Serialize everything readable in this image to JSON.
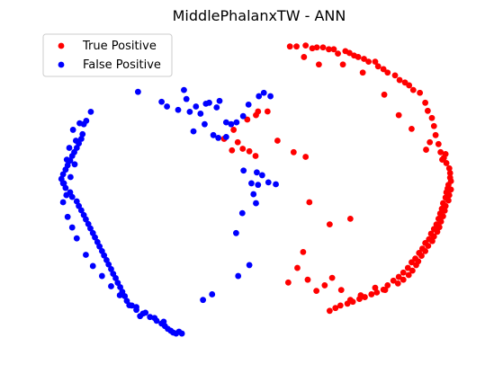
{
  "chart_data": {
    "type": "scatter",
    "title": "MiddlePhalanxTW - ANN",
    "xlabel": "",
    "ylabel": "",
    "axes_visible": false,
    "grid": false,
    "legend_position": "top-left",
    "xlim": [
      0,
      100
    ],
    "ylim": [
      0,
      100
    ],
    "series": [
      {
        "name": "True Positive",
        "color": "#ff0000",
        "points": [
          [
            57.0,
            97.2
          ],
          [
            58.6,
            97.2
          ],
          [
            60.8,
            97.5
          ],
          [
            62.4,
            96.6
          ],
          [
            63.5,
            96.9
          ],
          [
            65.0,
            96.9
          ],
          [
            66.4,
            96.3
          ],
          [
            67.6,
            96.3
          ],
          [
            68.6,
            94.9
          ],
          [
            70.4,
            95.7
          ],
          [
            71.4,
            95.1
          ],
          [
            72.5,
            94.3
          ],
          [
            73.5,
            93.8
          ],
          [
            74.9,
            93.2
          ],
          [
            76.0,
            92.3
          ],
          [
            77.6,
            92.3
          ],
          [
            78.3,
            90.8
          ],
          [
            79.6,
            89.9
          ],
          [
            80.6,
            88.8
          ],
          [
            82.4,
            87.9
          ],
          [
            83.5,
            86.4
          ],
          [
            84.8,
            85.6
          ],
          [
            85.8,
            84.7
          ],
          [
            86.8,
            83.2
          ],
          [
            88.4,
            82.3
          ],
          [
            89.7,
            79.1
          ],
          [
            90.3,
            76.5
          ],
          [
            91.3,
            74.2
          ],
          [
            91.8,
            71.6
          ],
          [
            92.2,
            68.7
          ],
          [
            92.9,
            65.8
          ],
          [
            93.4,
            63.2
          ],
          [
            94.2,
            61.4
          ],
          [
            94.8,
            59.7
          ],
          [
            95.5,
            58.0
          ],
          [
            95.7,
            56.5
          ],
          [
            95.7,
            55.0
          ],
          [
            95.9,
            53.9
          ],
          [
            95.3,
            52.7
          ],
          [
            95.1,
            51.5
          ],
          [
            95.9,
            51.2
          ],
          [
            94.8,
            50.3
          ],
          [
            95.5,
            49.4
          ],
          [
            94.6,
            48.6
          ],
          [
            95.3,
            47.7
          ],
          [
            94.0,
            46.8
          ],
          [
            94.6,
            45.9
          ],
          [
            93.7,
            45.0
          ],
          [
            94.4,
            44.4
          ],
          [
            93.3,
            43.5
          ],
          [
            94.0,
            42.6
          ],
          [
            92.9,
            41.8
          ],
          [
            93.5,
            40.9
          ],
          [
            92.4,
            40.0
          ],
          [
            93.1,
            39.1
          ],
          [
            91.8,
            38.5
          ],
          [
            92.6,
            37.6
          ],
          [
            91.1,
            37.0
          ],
          [
            91.8,
            36.1
          ],
          [
            90.6,
            35.2
          ],
          [
            91.4,
            34.6
          ],
          [
            89.7,
            34.0
          ],
          [
            90.4,
            33.1
          ],
          [
            89.0,
            32.2
          ],
          [
            89.7,
            31.4
          ],
          [
            88.2,
            30.8
          ],
          [
            88.8,
            29.9
          ],
          [
            87.3,
            29.0
          ],
          [
            88.0,
            28.1
          ],
          [
            86.4,
            27.8
          ],
          [
            87.5,
            26.9
          ],
          [
            85.5,
            26.0
          ],
          [
            86.6,
            25.1
          ],
          [
            84.4,
            24.5
          ],
          [
            85.7,
            23.7
          ],
          [
            83.3,
            23.1
          ],
          [
            84.4,
            22.2
          ],
          [
            82.0,
            21.9
          ],
          [
            83.1,
            21.0
          ],
          [
            80.6,
            20.4
          ],
          [
            79.6,
            19.0
          ],
          [
            78.0,
            18.1
          ],
          [
            76.7,
            17.5
          ],
          [
            75.1,
            16.6
          ],
          [
            73.8,
            16.0
          ],
          [
            72.2,
            15.1
          ],
          [
            70.9,
            14.5
          ],
          [
            69.2,
            13.9
          ],
          [
            68.0,
            13.1
          ],
          [
            66.6,
            12.2
          ],
          [
            56.6,
            21.3
          ],
          [
            58.8,
            26.0
          ],
          [
            61.3,
            22.2
          ],
          [
            63.4,
            18.6
          ],
          [
            65.4,
            20.4
          ],
          [
            67.2,
            22.8
          ],
          [
            69.4,
            18.9
          ],
          [
            71.6,
            15.7
          ],
          [
            74.1,
            17.2
          ],
          [
            77.6,
            19.6
          ],
          [
            80.0,
            18.9
          ],
          [
            60.2,
            31.1
          ],
          [
            61.7,
            47.1
          ],
          [
            66.6,
            40.0
          ],
          [
            71.6,
            41.8
          ],
          [
            41.1,
            67.5
          ],
          [
            43.0,
            63.8
          ],
          [
            46.7,
            73.7
          ],
          [
            48.8,
            75.1
          ],
          [
            49.3,
            76.3
          ],
          [
            51.6,
            76.3
          ],
          [
            43.4,
            70.4
          ],
          [
            44.4,
            66.4
          ],
          [
            45.6,
            64.3
          ],
          [
            47.2,
            63.5
          ],
          [
            48.7,
            62.0
          ],
          [
            54.0,
            66.9
          ],
          [
            57.9,
            63.2
          ],
          [
            60.8,
            61.7
          ],
          [
            89.9,
            64.0
          ],
          [
            90.8,
            66.4
          ],
          [
            86.4,
            70.7
          ],
          [
            83.3,
            75.1
          ],
          [
            79.8,
            81.7
          ],
          [
            74.6,
            88.8
          ],
          [
            69.8,
            91.4
          ],
          [
            64.0,
            91.4
          ],
          [
            60.4,
            93.8
          ],
          [
            94.6,
            62.6
          ],
          [
            93.8,
            60.8
          ]
        ]
      },
      {
        "name": "False Positive",
        "color": "#0000ff",
        "points": [
          [
            20.3,
            82.6
          ],
          [
            26.0,
            79.4
          ],
          [
            27.3,
            77.9
          ],
          [
            30.0,
            76.8
          ],
          [
            31.4,
            83.2
          ],
          [
            32.0,
            80.3
          ],
          [
            32.8,
            76.2
          ],
          [
            34.3,
            77.9
          ],
          [
            35.4,
            75.6
          ],
          [
            36.7,
            78.8
          ],
          [
            37.5,
            79.1
          ],
          [
            39.3,
            77.6
          ],
          [
            40.0,
            79.7
          ],
          [
            41.6,
            72.8
          ],
          [
            42.8,
            72.2
          ],
          [
            44.1,
            72.8
          ],
          [
            45.7,
            74.8
          ],
          [
            47.0,
            78.5
          ],
          [
            49.5,
            81.2
          ],
          [
            50.7,
            82.3
          ],
          [
            52.3,
            81.2
          ],
          [
            19.9,
            95.1
          ],
          [
            8.9,
            76.2
          ],
          [
            7.8,
            73.3
          ],
          [
            7.2,
            72.2
          ],
          [
            6.9,
            69.0
          ],
          [
            6.6,
            67.5
          ],
          [
            6.0,
            66.0
          ],
          [
            5.5,
            64.6
          ],
          [
            4.9,
            63.2
          ],
          [
            4.4,
            62.0
          ],
          [
            3.9,
            60.5
          ],
          [
            3.3,
            59.0
          ],
          [
            2.8,
            57.6
          ],
          [
            2.2,
            56.1
          ],
          [
            1.8,
            54.6
          ],
          [
            2.2,
            53.2
          ],
          [
            2.8,
            51.7
          ],
          [
            3.9,
            50.3
          ],
          [
            4.4,
            48.8
          ],
          [
            5.5,
            47.4
          ],
          [
            6.0,
            45.9
          ],
          [
            6.6,
            44.5
          ],
          [
            7.2,
            43.0
          ],
          [
            7.7,
            41.6
          ],
          [
            8.3,
            40.1
          ],
          [
            8.8,
            38.7
          ],
          [
            9.4,
            37.2
          ],
          [
            9.9,
            35.8
          ],
          [
            10.5,
            34.3
          ],
          [
            11.0,
            32.9
          ],
          [
            11.6,
            31.4
          ],
          [
            12.1,
            30.0
          ],
          [
            12.7,
            28.5
          ],
          [
            13.2,
            27.1
          ],
          [
            13.8,
            25.6
          ],
          [
            14.3,
            24.1
          ],
          [
            14.9,
            22.7
          ],
          [
            15.4,
            21.2
          ],
          [
            16.0,
            19.8
          ],
          [
            16.5,
            18.3
          ],
          [
            17.1,
            16.9
          ],
          [
            17.6,
            15.4
          ],
          [
            18.2,
            14.0
          ],
          [
            19.9,
            12.5
          ],
          [
            21.5,
            11.3
          ],
          [
            23.2,
            10.2
          ],
          [
            24.8,
            9.0
          ],
          [
            26.0,
            8.1
          ],
          [
            26.8,
            7.3
          ],
          [
            27.5,
            6.4
          ],
          [
            28.2,
            5.8
          ],
          [
            28.8,
            5.2
          ],
          [
            29.5,
            4.9
          ],
          [
            30.2,
            5.5
          ],
          [
            30.9,
            4.9
          ],
          [
            26.5,
            8.7
          ],
          [
            24.3,
            9.9
          ],
          [
            22.1,
            11.6
          ],
          [
            19.9,
            13.4
          ],
          [
            5.0,
            59.3
          ],
          [
            4.0,
            55.2
          ],
          [
            3.1,
            60.8
          ],
          [
            2.4,
            53.2
          ],
          [
            3.7,
            64.6
          ],
          [
            5.3,
            66.9
          ],
          [
            4.6,
            70.4
          ],
          [
            6.2,
            72.5
          ],
          [
            3.0,
            49.4
          ],
          [
            2.2,
            47.1
          ],
          [
            3.3,
            42.4
          ],
          [
            4.4,
            39.0
          ],
          [
            5.5,
            35.5
          ],
          [
            7.7,
            30.2
          ],
          [
            9.4,
            26.6
          ],
          [
            11.6,
            23.4
          ],
          [
            13.8,
            20.1
          ],
          [
            15.9,
            17.2
          ],
          [
            18.8,
            13.9
          ],
          [
            20.8,
            10.5
          ],
          [
            44.0,
            37.2
          ],
          [
            45.5,
            43.6
          ],
          [
            47.2,
            26.9
          ],
          [
            44.5,
            23.4
          ],
          [
            36.0,
            15.7
          ],
          [
            38.2,
            17.5
          ],
          [
            47.7,
            53.2
          ],
          [
            49.3,
            52.7
          ],
          [
            48.2,
            49.7
          ],
          [
            48.8,
            46.8
          ],
          [
            50.3,
            55.8
          ],
          [
            51.8,
            53.5
          ],
          [
            53.6,
            52.9
          ],
          [
            49.0,
            56.7
          ],
          [
            45.8,
            57.3
          ],
          [
            41.6,
            68.1
          ],
          [
            39.7,
            67.8
          ],
          [
            38.5,
            68.7
          ],
          [
            36.4,
            72.2
          ],
          [
            33.7,
            69.9
          ]
        ]
      }
    ]
  }
}
